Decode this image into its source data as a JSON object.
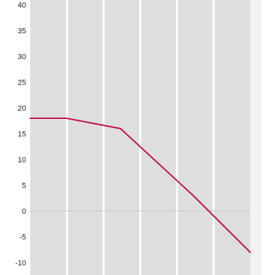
{
  "chart_data": {
    "type": "line",
    "title": "",
    "xlabel": "",
    "ylabel": "",
    "ylim": [
      -12,
      40
    ],
    "xlim": [
      0,
      1
    ],
    "yticks": [
      40,
      35,
      30,
      25,
      20,
      15,
      10,
      5,
      0,
      -5,
      -10
    ],
    "ytick_labels": [
      "40",
      "35",
      "30",
      "25",
      "20",
      "15",
      "10",
      "5",
      "0",
      "-5",
      "-10"
    ],
    "vertical_bands": 6,
    "grid": "vertical bands",
    "zero_line": true,
    "series": [
      {
        "color": "#c0104a",
        "points": [
          {
            "x": 0.0,
            "y": 18
          },
          {
            "x": 0.164,
            "y": 18
          },
          {
            "x": 0.41,
            "y": 16
          },
          {
            "x": 0.741,
            "y": 3
          },
          {
            "x": 1.0,
            "y": -8
          }
        ]
      }
    ],
    "colors": {
      "band": "#dedede",
      "band_separator": "#ffffff",
      "right_strip": "#f2f2f2",
      "zero_line": "#c4c4c4",
      "tick_text": "#222222"
    }
  }
}
